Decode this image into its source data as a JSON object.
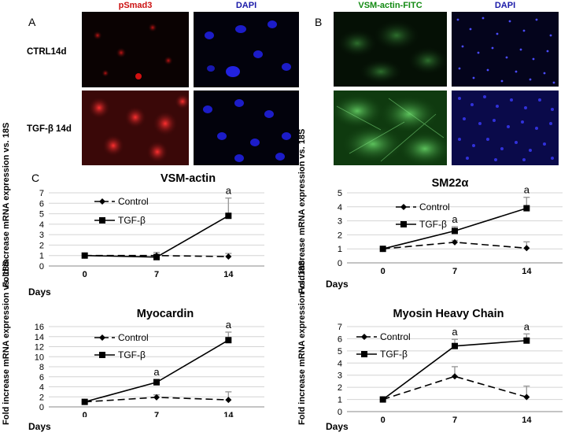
{
  "panel_labels": {
    "a": "A",
    "b": "B",
    "c": "C"
  },
  "panel_a": {
    "col1": "pSmad3",
    "col2": "DAPI",
    "row1": "CTRL14d",
    "row2": "TGF-β 14d"
  },
  "panel_b": {
    "col1": "VSM-actin-FITC",
    "col2": "DAPI"
  },
  "days_label": "Days",
  "chart_data": [
    {
      "type": "line",
      "title": "VSM-actin",
      "ylabel": "Fold increase mRNA expression vs. 18S",
      "xlabel": "Days",
      "categories": [
        "0",
        "7",
        "14"
      ],
      "ylim": [
        0,
        7
      ],
      "yticks": [
        0,
        1,
        2,
        3,
        4,
        5,
        6,
        7
      ],
      "series": [
        {
          "name": "Control",
          "values": [
            1.0,
            1.0,
            0.9
          ],
          "errors": [
            0,
            0.3,
            0.3
          ],
          "marker": "diamond",
          "dash": true
        },
        {
          "name": "TGF-β",
          "values": [
            1.0,
            0.85,
            4.8
          ],
          "errors": [
            0,
            0.25,
            1.7
          ],
          "marker": "square",
          "dash": false
        }
      ],
      "annotations": [
        {
          "category": "14",
          "text": "a"
        }
      ],
      "legend_position": "top-left"
    },
    {
      "type": "line",
      "title": "SM22α",
      "ylabel": "Fold increase mRNA expression vs. 18S",
      "xlabel": "Days",
      "categories": [
        "0",
        "7",
        "14"
      ],
      "ylim": [
        0,
        5
      ],
      "yticks": [
        0,
        1,
        2,
        3,
        4,
        5
      ],
      "series": [
        {
          "name": "Control",
          "values": [
            1.0,
            1.47,
            1.05
          ],
          "errors": [
            0,
            0.13,
            0.45
          ],
          "marker": "diamond",
          "dash": true
        },
        {
          "name": "TGF-β",
          "values": [
            1.0,
            2.28,
            3.9
          ],
          "errors": [
            0,
            0.3,
            0.78
          ],
          "marker": "square",
          "dash": false
        }
      ],
      "annotations": [
        {
          "category": "7",
          "text": "a"
        },
        {
          "category": "14",
          "text": "a"
        }
      ],
      "legend_position": "top-left"
    },
    {
      "type": "line",
      "title": "Myocardin",
      "ylabel": "Fold increase mRNA expression vs. 18S",
      "xlabel": "Days",
      "categories": [
        "0",
        "7",
        "14"
      ],
      "ylim": [
        0,
        16
      ],
      "yticks": [
        0,
        2,
        4,
        6,
        8,
        10,
        12,
        14,
        16
      ],
      "series": [
        {
          "name": "Control",
          "values": [
            1.0,
            1.9,
            1.4
          ],
          "errors": [
            0,
            0.5,
            1.6
          ],
          "marker": "diamond",
          "dash": true
        },
        {
          "name": "TGF-β",
          "values": [
            1.0,
            4.9,
            13.3
          ],
          "errors": [
            0,
            0.6,
            1.6
          ],
          "marker": "square",
          "dash": false
        }
      ],
      "annotations": [
        {
          "category": "7",
          "text": "a"
        },
        {
          "category": "14",
          "text": "a"
        }
      ],
      "legend_position": "top-left"
    },
    {
      "type": "line",
      "title": "Myosin Heavy Chain",
      "ylabel": "Fold increase mRNA expression vs. 18S",
      "xlabel": "Days",
      "categories": [
        "0",
        "7",
        "14"
      ],
      "ylim": [
        0,
        7
      ],
      "yticks": [
        0,
        1,
        2,
        3,
        4,
        5,
        6,
        7
      ],
      "series": [
        {
          "name": "Control",
          "values": [
            1.0,
            2.9,
            1.2
          ],
          "errors": [
            0,
            0.8,
            0.9
          ],
          "marker": "diamond",
          "dash": true
        },
        {
          "name": "TGF-β",
          "values": [
            1.0,
            5.4,
            5.85
          ],
          "errors": [
            0,
            0.55,
            0.55
          ],
          "marker": "square",
          "dash": false
        }
      ],
      "annotations": [
        {
          "category": "7",
          "text": "a"
        },
        {
          "category": "14",
          "text": "a"
        }
      ],
      "legend_position": "top-left"
    }
  ]
}
